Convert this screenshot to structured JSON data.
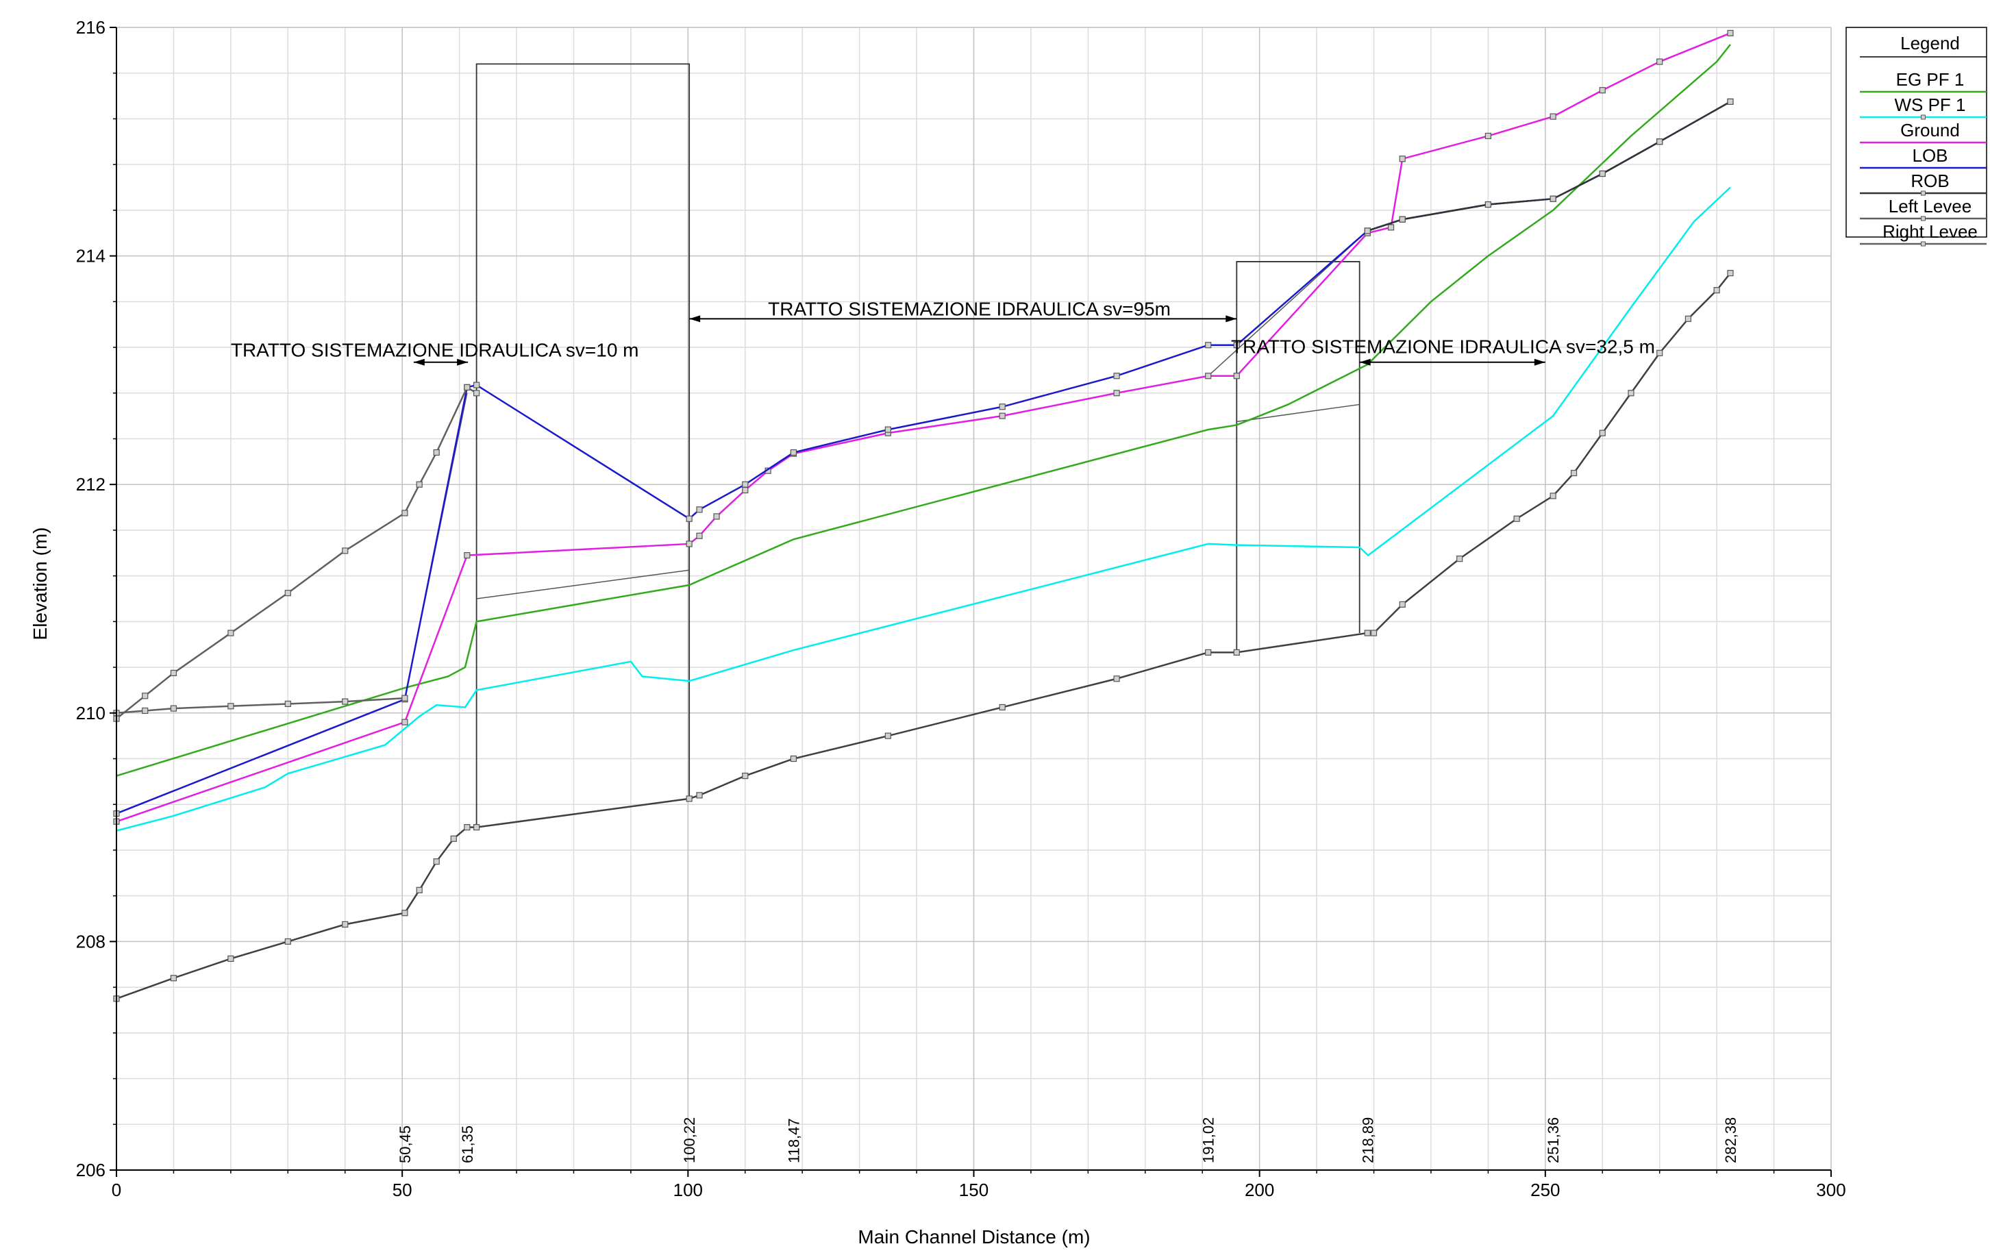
{
  "chart_data": {
    "type": "line",
    "xlabel": "Main Channel Distance (m)",
    "ylabel": "Elevation (m)",
    "xlim": [
      0,
      300
    ],
    "ylim": [
      206,
      216
    ],
    "x_ticks": [
      0,
      50,
      100,
      150,
      200,
      250,
      300
    ],
    "y_ticks": [
      206,
      208,
      210,
      212,
      214,
      216
    ],
    "x_minor_step": 10,
    "y_minor_step": 0.4,
    "grid": true,
    "legend": {
      "title": "Legend",
      "placement": "top-right",
      "entries": [
        "EG  PF 1",
        "WS  PF 1",
        "Ground",
        "LOB",
        "ROB",
        "Left Levee",
        "Right Levee"
      ]
    },
    "station_labels": [
      "50,45",
      "61,35",
      "100,22",
      "118,47",
      "191,02",
      "218,89",
      "251,36",
      "282,38"
    ],
    "station_values": [
      50.45,
      61.35,
      100.22,
      118.47,
      191.02,
      218.89,
      251.36,
      282.38
    ],
    "series": [
      {
        "name": "EG  PF 1",
        "color": "#33aa1e",
        "marker": false,
        "x": [
          0,
          50.45,
          58,
          61,
          63,
          100.22,
          118.47,
          191.02,
          196,
          205,
          218.89,
          230,
          240,
          251.36,
          265,
          280,
          282.38
        ],
        "y": [
          209.45,
          210.22,
          210.32,
          210.4,
          210.8,
          211.12,
          211.52,
          212.48,
          212.52,
          212.7,
          213.05,
          213.6,
          214.0,
          214.4,
          215.05,
          215.7,
          215.85
        ]
      },
      {
        "name": "WS  PF 1",
        "color": "#00eeee",
        "marker": false,
        "x": [
          0,
          10,
          26,
          30,
          47,
          53,
          56,
          61,
          63,
          90,
          92,
          100.22,
          118.47,
          191.02,
          196,
          217.5,
          219,
          251.36,
          265,
          276,
          282.38
        ],
        "y": [
          208.97,
          209.1,
          209.35,
          209.47,
          209.72,
          209.97,
          210.07,
          210.05,
          210.2,
          210.45,
          210.32,
          210.28,
          210.55,
          211.48,
          211.47,
          211.45,
          211.38,
          212.6,
          213.55,
          214.3,
          214.6
        ]
      },
      {
        "name": "Ground",
        "color": "#e21ee2",
        "marker": true,
        "x": [
          0,
          50.45,
          61.35,
          100.22,
          102,
          105,
          110,
          114,
          118.47,
          135,
          155,
          175,
          191.02,
          196,
          218.89,
          223,
          225,
          240,
          251.36,
          260,
          270,
          282.38
        ],
        "y": [
          209.05,
          209.92,
          211.38,
          211.48,
          211.55,
          211.72,
          211.95,
          212.12,
          212.27,
          212.45,
          212.6,
          212.8,
          212.95,
          212.95,
          214.2,
          214.25,
          214.85,
          215.05,
          215.22,
          215.45,
          215.7,
          215.95
        ]
      },
      {
        "name": "LOB",
        "color": "#1a1acc",
        "marker": true,
        "x": [
          0,
          50.45,
          61.35,
          63,
          100.22,
          102,
          110,
          118.47,
          135,
          155,
          175,
          191.02,
          196,
          218.89,
          225,
          240,
          251.36,
          260,
          270,
          282.38
        ],
        "y": [
          209.12,
          210.12,
          212.85,
          212.87,
          211.7,
          211.78,
          212.0,
          212.28,
          212.48,
          212.68,
          212.95,
          213.22,
          213.22,
          214.22,
          214.32,
          214.45,
          214.5,
          214.72,
          215.0,
          215.35
        ]
      },
      {
        "name": "ROB",
        "color": "#333333",
        "marker": true,
        "x": [
          218.89,
          225,
          240,
          251.36,
          260,
          270,
          282.38
        ],
        "y": [
          214.22,
          214.32,
          214.45,
          214.5,
          214.72,
          215.0,
          215.35
        ]
      },
      {
        "name": "Left Levee",
        "color": "#606060",
        "marker": true,
        "x": [
          0,
          5,
          10,
          20,
          30,
          40,
          50.45,
          53,
          56,
          61.35,
          63
        ],
        "y": [
          209.95,
          210.15,
          210.35,
          210.7,
          211.05,
          211.42,
          211.75,
          212.0,
          212.28,
          212.85,
          212.8
        ]
      },
      {
        "name": "Right Levee",
        "color": "#606060",
        "marker": true,
        "x": [
          0,
          5,
          10,
          20,
          30,
          40,
          50.45
        ],
        "y": [
          210.0,
          210.02,
          210.04,
          210.06,
          210.08,
          210.1,
          210.13
        ]
      },
      {
        "name": "",
        "color": "#404040",
        "marker": true,
        "x": [
          0,
          10,
          20,
          30,
          40,
          50.45,
          53,
          56,
          59,
          61.35,
          63,
          100.22,
          102,
          110,
          118.47,
          135,
          155,
          175,
          191.02,
          196,
          218.89,
          220,
          225,
          235,
          245,
          251.36,
          255,
          260,
          265,
          270,
          275,
          280,
          282.38
        ],
        "y": [
          207.5,
          207.68,
          207.85,
          208.0,
          208.15,
          208.25,
          208.45,
          208.7,
          208.9,
          209.0,
          209.0,
          209.25,
          209.28,
          209.45,
          209.6,
          209.8,
          210.05,
          210.3,
          210.53,
          210.53,
          210.7,
          210.7,
          210.95,
          211.35,
          211.7,
          211.9,
          212.1,
          212.45,
          212.8,
          213.15,
          213.45,
          213.7,
          213.85
        ]
      }
    ],
    "structures": [
      {
        "x": [
          63,
          63,
          100.22,
          100.22
        ],
        "y": [
          209.0,
          215.68,
          215.68,
          209.25
        ]
      },
      {
        "x": [
          196,
          196,
          217.5,
          217.5
        ],
        "y": [
          210.53,
          213.95,
          213.95,
          210.7
        ]
      }
    ],
    "thin_lines": [
      {
        "x": [
          63,
          100.22
        ],
        "y": [
          211.0,
          211.25
        ]
      },
      {
        "x": [
          196,
          217.5
        ],
        "y": [
          212.55,
          212.7
        ]
      },
      {
        "x": [
          191.02,
          218.89
        ],
        "y": [
          212.95,
          214.22
        ]
      },
      {
        "x": [
          50.45,
          61.35
        ],
        "y": [
          210.12,
          212.8
        ]
      }
    ],
    "annotations": [
      {
        "text": "TRATTO SISTEMAZIONE IDRAULICA sv=10 m",
        "x": 20,
        "y": 213.12,
        "arrow": [
          52,
          61.5
        ],
        "arrow_y": 213.07
      },
      {
        "text": "TRATTO SISTEMAZIONE IDRAULICA sv=95m",
        "x": 114,
        "y": 213.48,
        "arrow": [
          100.22,
          196
        ],
        "arrow_y": 213.45
      },
      {
        "text": "TRATTO SISTEMAZIONE IDRAULICA sv=32,5 m",
        "x": 195,
        "y": 213.15,
        "arrow": [
          217.5,
          250
        ],
        "arrow_y": 213.07
      }
    ]
  }
}
